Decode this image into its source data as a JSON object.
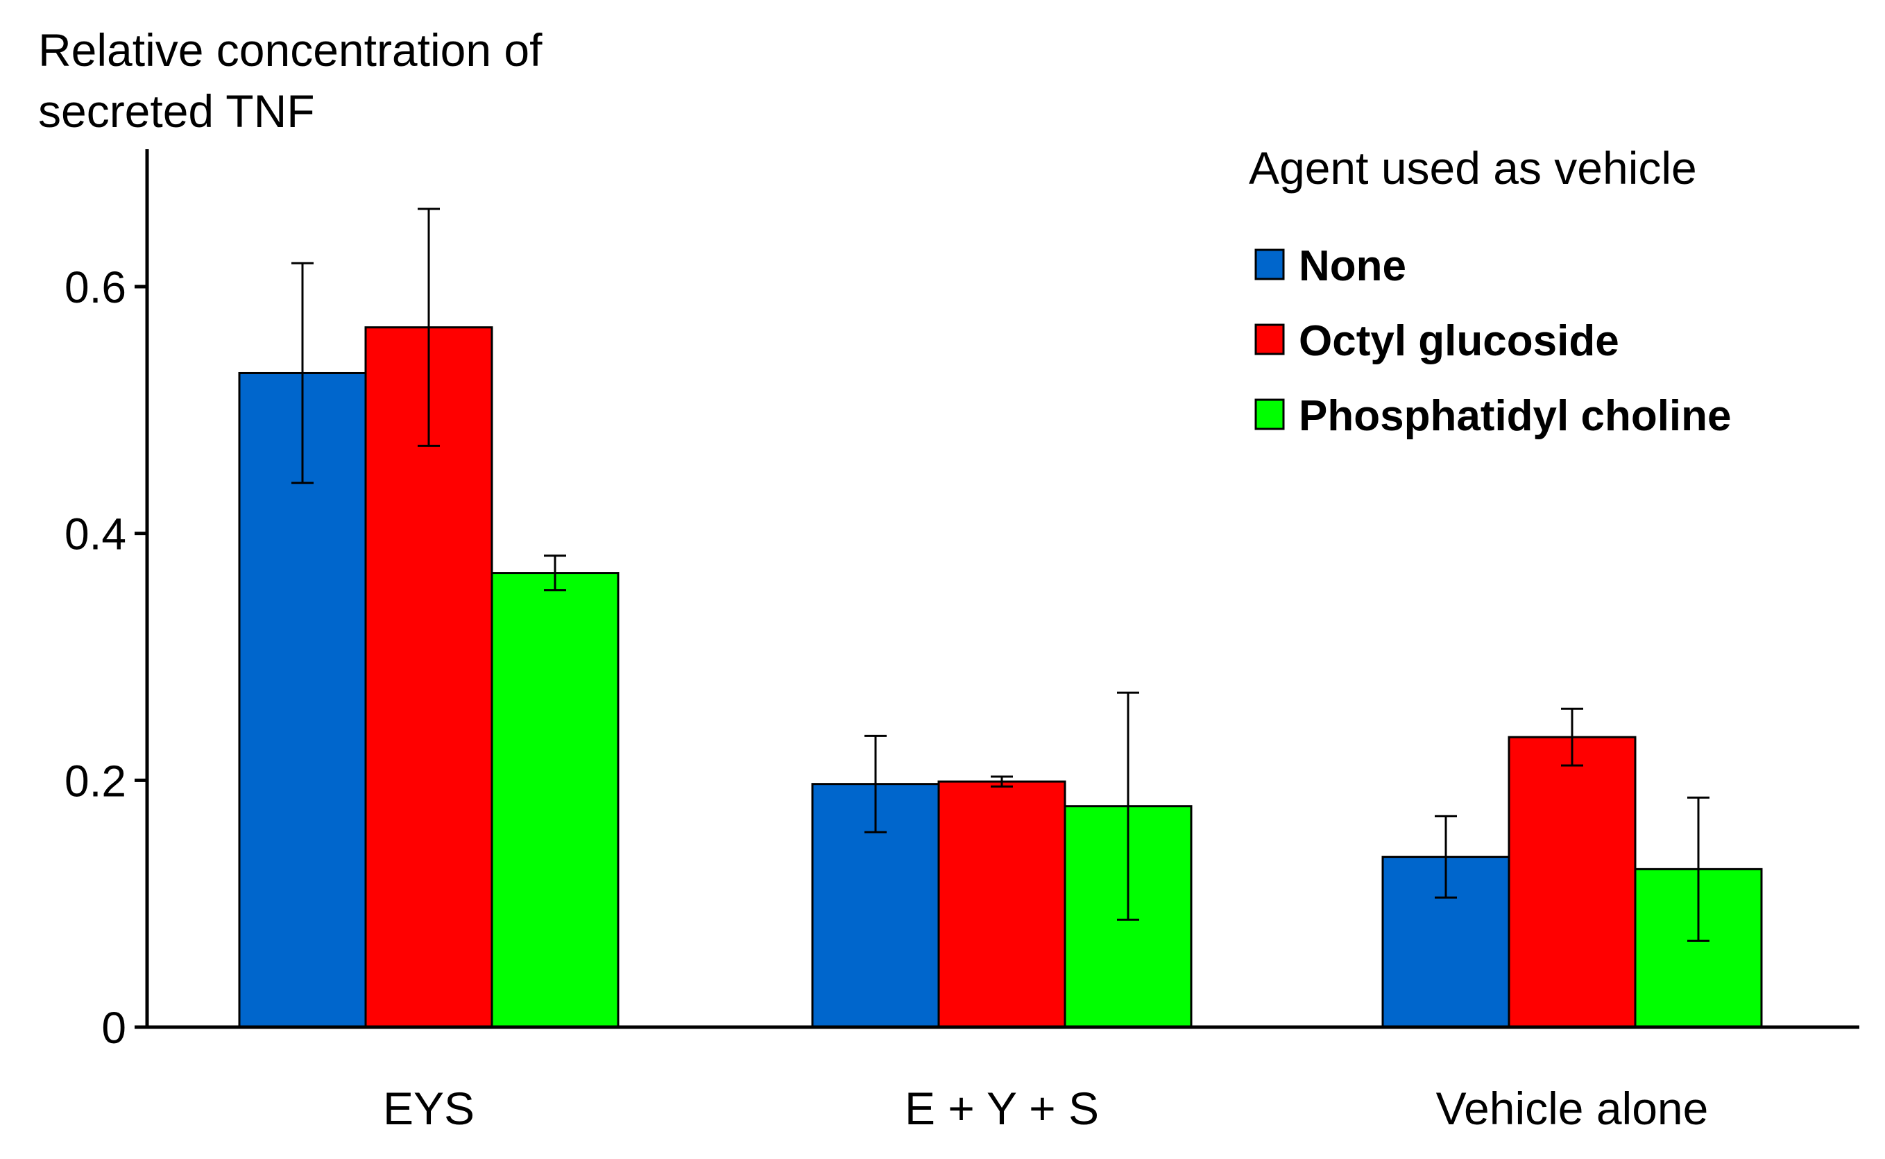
{
  "chart_data": {
    "type": "bar",
    "ylabel_lines": [
      "Relative concentration of",
      "secreted TNF"
    ],
    "categories": [
      "EYS",
      "E + Y + S",
      "Vehicle alone"
    ],
    "legend_title": "Agent used as vehicle",
    "legend_position": "top-right",
    "yticks": [
      0,
      0.2,
      0.4,
      0.6
    ],
    "ytick_labels": [
      "0",
      "0.2",
      "0.4",
      "0.6"
    ],
    "ylim": [
      0,
      0.7
    ],
    "series": [
      {
        "name": "None",
        "color": "#0066CC",
        "values": [
          0.53,
          0.197,
          0.138
        ],
        "errors": [
          0.089,
          0.039,
          0.033
        ]
      },
      {
        "name": "Octyl glucoside",
        "color": "#FF0000",
        "values": [
          0.567,
          0.199,
          0.235
        ],
        "errors": [
          0.096,
          0.004,
          0.023
        ]
      },
      {
        "name": "Phosphatidyl choline",
        "color": "#00FF00",
        "values": [
          0.368,
          0.179,
          0.128
        ],
        "errors": [
          0.014,
          0.092,
          0.058
        ]
      }
    ]
  }
}
